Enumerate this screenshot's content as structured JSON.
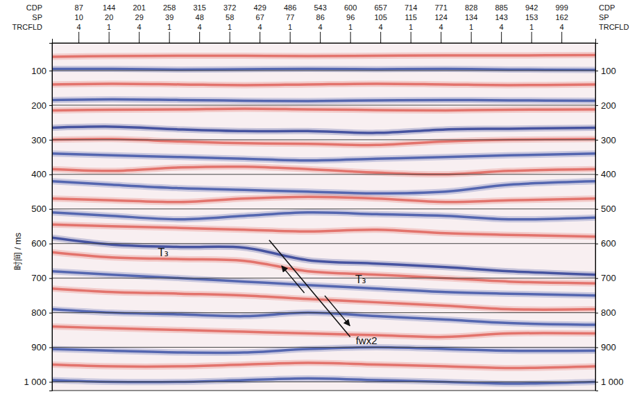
{
  "chart_data": {
    "type": "seismic_section",
    "y_label": "时间 / ms",
    "row_labels": [
      "CDP",
      "SP",
      "TRCFLD"
    ],
    "xlim": [
      37,
      1063
    ],
    "ylim": [
      20,
      1025
    ],
    "xticks": [
      87,
      144,
      201,
      258,
      315,
      372,
      429,
      486,
      543,
      600,
      657,
      714,
      771,
      828,
      885,
      942,
      999
    ],
    "sp_labels": [
      10,
      20,
      29,
      39,
      48,
      58,
      67,
      77,
      86,
      96,
      105,
      115,
      124,
      134,
      143,
      153,
      162
    ],
    "trcfld_labels": [
      4,
      1,
      4,
      1,
      4,
      1,
      4,
      1,
      4,
      1,
      4,
      1,
      4,
      1,
      4,
      1,
      4
    ],
    "yticks": [
      100,
      200,
      300,
      400,
      500,
      600,
      700,
      800,
      900,
      {
        "value": 1000,
        "label": "1 000"
      }
    ],
    "grid": true,
    "x": [
      37,
      150,
      280,
      400,
      520,
      650,
      780,
      900,
      1063
    ],
    "series": [
      {
        "color": "#e0635c",
        "values": [
          60,
          58,
          57,
          57,
          58,
          57,
          56,
          56,
          55
        ]
      },
      {
        "color": "#3f55a8",
        "values": [
          95,
          95,
          97,
          96,
          95,
          96,
          95,
          97,
          98
        ]
      },
      {
        "color": "#e0635c",
        "values": [
          140,
          138,
          140,
          142,
          140,
          138,
          140,
          142,
          140
        ]
      },
      {
        "color": "#3f55a8",
        "values": [
          185,
          183,
          185,
          187,
          188,
          186,
          185,
          186,
          187
        ]
      },
      {
        "color": "#e0635c",
        "values": [
          215,
          213,
          212,
          210,
          212,
          214,
          215,
          213,
          212
        ]
      },
      {
        "color": "#2f3f95",
        "values": [
          265,
          262,
          270,
          275,
          275,
          280,
          270,
          268,
          265
        ]
      },
      {
        "color": "#e0635c",
        "values": [
          300,
          298,
          305,
          310,
          312,
          315,
          305,
          300,
          298
        ]
      },
      {
        "color": "#3f55a8",
        "values": [
          340,
          345,
          350,
          355,
          360,
          355,
          350,
          345,
          340
        ]
      },
      {
        "color": "#e0635c",
        "values": [
          385,
          390,
          380,
          378,
          385,
          395,
          400,
          390,
          385
        ]
      },
      {
        "color": "#3f55a8",
        "values": [
          420,
          430,
          440,
          445,
          450,
          455,
          450,
          430,
          420
        ]
      },
      {
        "color": "#e0635c",
        "values": [
          470,
          475,
          480,
          470,
          465,
          470,
          480,
          475,
          470
        ]
      },
      {
        "color": "#3f55a8",
        "values": [
          510,
          520,
          530,
          520,
          510,
          515,
          520,
          530,
          525
        ]
      },
      {
        "color": "#e0635c",
        "values": [
          545,
          550,
          555,
          560,
          565,
          560,
          570,
          575,
          580
        ]
      },
      {
        "color": "#2f3f95",
        "values": [
          583,
          603,
          610,
          612,
          648,
          658,
          668,
          680,
          690
        ]
      },
      {
        "color": "#e0635c",
        "values": [
          625,
          640,
          645,
          650,
          680,
          690,
          700,
          710,
          715
        ]
      },
      {
        "color": "#3f55a8",
        "values": [
          680,
          690,
          700,
          710,
          720,
          730,
          740,
          745,
          750
        ]
      },
      {
        "color": "#e0635c",
        "values": [
          730,
          740,
          745,
          750,
          760,
          770,
          780,
          790,
          790
        ]
      },
      {
        "color": "#3f55a8",
        "values": [
          790,
          800,
          805,
          810,
          800,
          810,
          820,
          830,
          835
        ]
      },
      {
        "color": "#e0635c",
        "values": [
          840,
          845,
          850,
          855,
          860,
          865,
          870,
          860,
          860
        ]
      },
      {
        "color": "#3f55a8",
        "values": [
          905,
          910,
          915,
          915,
          905,
          900,
          905,
          910,
          910
        ]
      },
      {
        "color": "#e0635c",
        "values": [
          950,
          955,
          955,
          950,
          945,
          950,
          955,
          960,
          955
        ]
      },
      {
        "color": "#3f55a8",
        "values": [
          995,
          1000,
          1000,
          995,
          990,
          995,
          1000,
          1005,
          1000
        ]
      }
    ],
    "fault": {
      "name": "fwx2",
      "x": [
        447,
        600
      ],
      "y": [
        590,
        870
      ]
    },
    "annotations": [
      {
        "text": "T₃",
        "x": 247,
        "y": 628
      },
      {
        "text": "T₃",
        "x": 620,
        "y": 705
      }
    ]
  }
}
